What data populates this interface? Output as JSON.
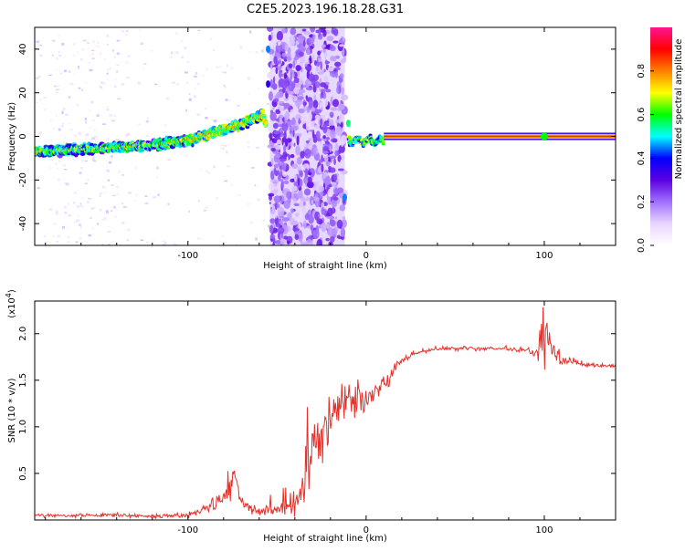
{
  "figure": {
    "title": "C2E5.2023.196.18.28.G31"
  },
  "colorbar": {
    "label": "Normalized spectral amplitude",
    "ticks": [
      "0.0",
      "0.2",
      "0.4",
      "0.6",
      "0.8"
    ],
    "colormap": [
      "#ffffff",
      "#e9d6ff",
      "#a070ff",
      "#5b00e0",
      "#0000ff",
      "#00ffff",
      "#00ff00",
      "#ffff00",
      "#ff8000",
      "#ff0000",
      "#ff1493"
    ]
  },
  "chart_data": [
    {
      "type": "heatmap",
      "title": "",
      "xlabel": "Height of straight line (km)",
      "ylabel": "Frequency (Hz)",
      "xlim": [
        -186,
        140
      ],
      "ylim": [
        -50,
        50
      ],
      "xticks": [
        -100,
        0,
        100
      ],
      "xtick_labels": [
        "-100",
        "0",
        "100"
      ],
      "yticks": [
        -40,
        -20,
        0,
        20,
        40
      ],
      "ytick_labels": [
        "-40",
        "-20",
        "0",
        "20",
        "40"
      ],
      "zrange": [
        0,
        1
      ],
      "ridge": {
        "x": [
          -186,
          -160,
          -140,
          -120,
          -100,
          -80,
          -66,
          -58,
          -56
        ],
        "y": [
          -7,
          -6,
          -5,
          -4,
          -2,
          3,
          7,
          10,
          5
        ]
      },
      "noise_band": {
        "x": [
          -54,
          -12
        ],
        "y": [
          -50,
          50
        ]
      },
      "carrier_line": {
        "x": [
          10,
          140
        ],
        "y": 0,
        "amplitude": 1.0
      }
    },
    {
      "type": "line",
      "title": "",
      "xlabel": "Height of straight line (km)",
      "ylabel": "SNR (10 * v/v)",
      "yscale_label": "(x10^4)",
      "xlim": [
        -186,
        140
      ],
      "ylim": [
        0,
        2.35
      ],
      "xticks": [
        -100,
        0,
        100
      ],
      "xtick_labels": [
        "-100",
        "0",
        "100"
      ],
      "yticks": [
        0.5,
        1.0,
        1.5,
        2.0
      ],
      "ytick_labels": [
        "0.5",
        "1.0",
        "1.5",
        "2.0"
      ],
      "series_color": "#e8302a",
      "envelope": {
        "x": [
          -186,
          -150,
          -120,
          -100,
          -90,
          -80,
          -74,
          -70,
          -60,
          -45,
          -38,
          -32,
          -26,
          -20,
          -14,
          -8,
          0,
          10,
          20,
          30,
          40,
          60,
          80,
          95,
          100,
          102,
          104,
          110,
          125,
          140
        ],
        "y": [
          0.05,
          0.05,
          0.04,
          0.05,
          0.12,
          0.25,
          0.45,
          0.2,
          0.08,
          0.1,
          0.3,
          0.6,
          0.9,
          1.1,
          1.22,
          1.32,
          1.3,
          1.45,
          1.72,
          1.8,
          1.84,
          1.84,
          1.84,
          1.8,
          1.95,
          2.15,
          1.78,
          1.72,
          1.67,
          1.65
        ]
      },
      "noise_amplitude": {
        "x": [
          -186,
          -95,
          -85,
          -78,
          -70,
          -60,
          -45,
          -35,
          -20,
          -10,
          0,
          10,
          20,
          30,
          90,
          96,
          100,
          103,
          106,
          112,
          120,
          140
        ],
        "y": [
          0.02,
          0.03,
          0.08,
          0.18,
          0.12,
          0.05,
          0.12,
          0.35,
          0.3,
          0.25,
          0.2,
          0.12,
          0.06,
          0.03,
          0.03,
          0.1,
          0.3,
          0.22,
          0.12,
          0.05,
          0.03,
          0.02
        ]
      }
    }
  ]
}
